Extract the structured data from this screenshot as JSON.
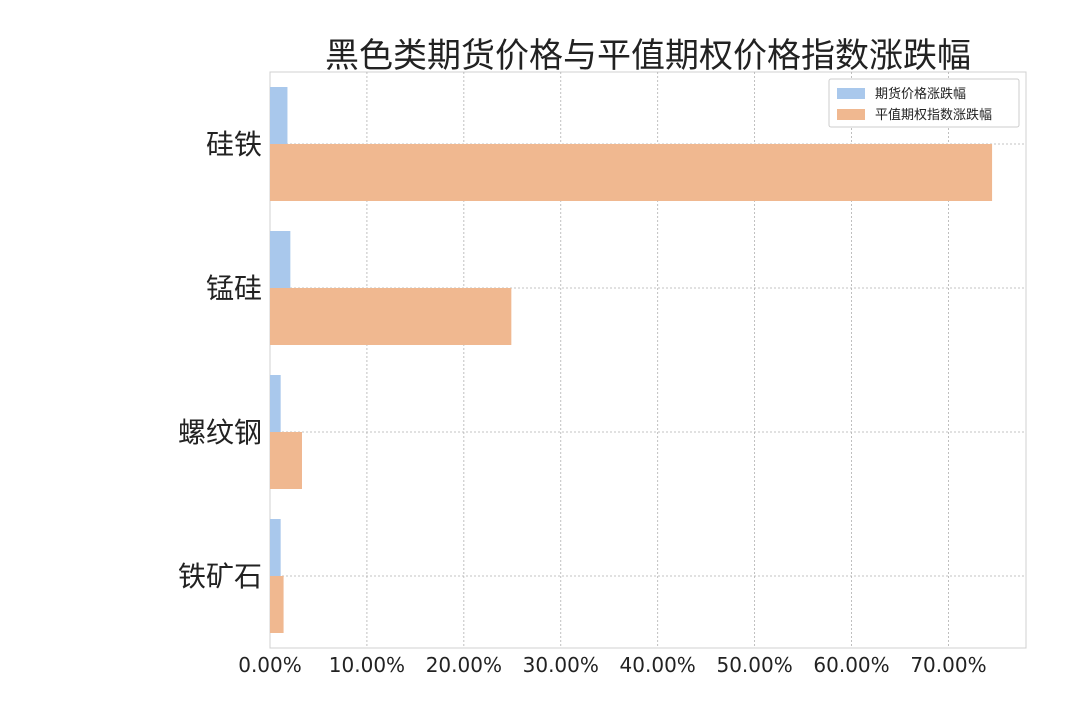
{
  "chart_data": {
    "type": "bar",
    "orientation": "horizontal",
    "title": "黑色类期货价格与平值期权价格指数涨跌幅",
    "categories": [
      "硅铁",
      "锰硅",
      "螺纹钢",
      "铁矿石"
    ],
    "series": [
      {
        "name": "期货价格涨跌幅",
        "values": [
          1.8,
          2.1,
          1.1,
          1.1
        ],
        "color": "#a9c8ec"
      },
      {
        "name": "平值期权指数涨跌幅",
        "values": [
          74.5,
          24.9,
          3.3,
          1.4
        ],
        "color": "#f0b890"
      }
    ],
    "xlim": [
      0,
      78
    ],
    "xticks": [
      0,
      10,
      20,
      30,
      40,
      50,
      60,
      70
    ],
    "xtick_labels": [
      "0.00%",
      "10.00%",
      "20.00%",
      "30.00%",
      "40.00%",
      "50.00%",
      "60.00%",
      "70.00%"
    ],
    "xlabel": "",
    "ylabel": "",
    "grid": true,
    "legend_position": "top-right"
  }
}
